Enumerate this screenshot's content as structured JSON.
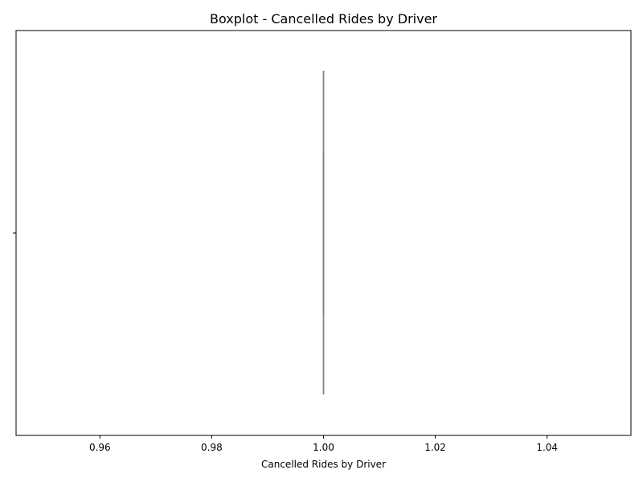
{
  "chart_data": {
    "type": "boxplot",
    "title": "Boxplot - Cancelled Rides by Driver",
    "xlabel": "Cancelled Rides by Driver",
    "ylabel": "",
    "xlim": [
      0.945,
      1.055
    ],
    "x_ticks": [
      0.96,
      0.98,
      1.0,
      1.02,
      1.04
    ],
    "x_tick_labels": [
      "0.96",
      "0.98",
      "1.00",
      "1.02",
      "1.04"
    ],
    "grid": false,
    "box": {
      "min": 1.0,
      "q1": 1.0,
      "median": 1.0,
      "q3": 1.0,
      "max": 1.0
    },
    "colors": {
      "box_line": "#808080",
      "axis": "#000000"
    }
  }
}
